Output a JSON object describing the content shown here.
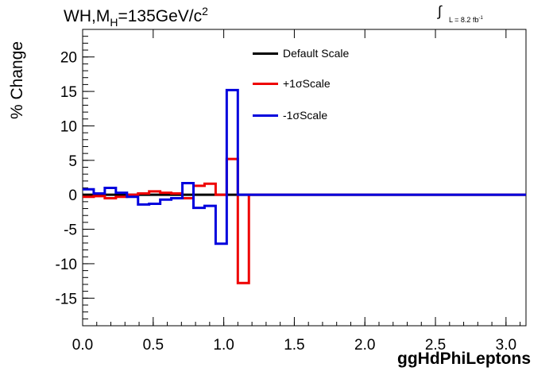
{
  "chart_data": {
    "type": "line",
    "title_main": "WH,M",
    "title_sub": "H",
    "title_value": "=135GeV/c",
    "title_sup": "2",
    "lumi_label": "L = 8.2 fb",
    "lumi_sup": "-1",
    "xlabel": "ggHdPhiLeptons",
    "ylabel": "% Change",
    "xlim": [
      0,
      3.1416
    ],
    "ylim": [
      -19,
      24
    ],
    "xticks": [
      0.0,
      0.5,
      1.0,
      1.5,
      2.0,
      2.5,
      3.0
    ],
    "xtick_labels": [
      "0.0",
      "0.5",
      "1.0",
      "1.5",
      "2.0",
      "2.5",
      "3.0"
    ],
    "yticks": [
      -15,
      -10,
      -5,
      0,
      5,
      10,
      15,
      20
    ],
    "ytick_labels": [
      "-15",
      "-10",
      "-5",
      "0",
      "5",
      "10",
      "15",
      "20"
    ],
    "legend_position": "top-center",
    "bin_edges": [
      0,
      0.0785,
      0.157,
      0.2356,
      0.3142,
      0.3927,
      0.4712,
      0.5498,
      0.6283,
      0.7069,
      0.7854,
      0.8639,
      0.9425,
      1.021,
      1.0996,
      1.1781,
      3.1416
    ],
    "series": [
      {
        "name": "Default Scale",
        "color": "#000000",
        "values": [
          0,
          0,
          0,
          0,
          0,
          0,
          0,
          0,
          0,
          0,
          0,
          0,
          0,
          0,
          0,
          0
        ]
      },
      {
        "name": "+1σScale",
        "color": "#ee0000",
        "values": [
          -0.3,
          -0.2,
          -0.5,
          -0.3,
          0,
          0.2,
          0.5,
          0.3,
          0.2,
          -0.5,
          1.3,
          1.6,
          0,
          5.2,
          -12.8,
          0
        ]
      },
      {
        "name": "-1σScale",
        "color": "#0000dd",
        "values": [
          0.8,
          0.2,
          1.0,
          0.3,
          -0.3,
          -1.4,
          -1.3,
          -0.7,
          -0.5,
          1.7,
          -1.9,
          -1.6,
          -7.1,
          15.2,
          0,
          0
        ]
      }
    ]
  }
}
